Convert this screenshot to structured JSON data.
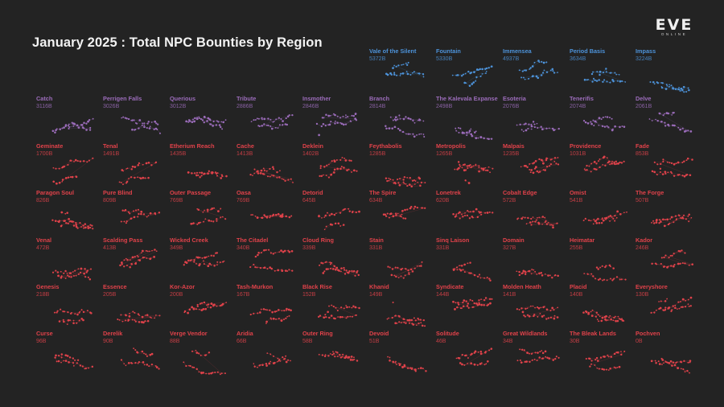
{
  "title": "January 2025 : Total NPC Bounties by Region",
  "logo": {
    "main": "EVE",
    "sub": "ONLINE"
  },
  "colors": {
    "high": "#4d93da",
    "mid": "#9b6cba",
    "low": "#e0424a"
  },
  "chart_data": {
    "type": "small-multiples",
    "metric": "Total NPC Bounties",
    "unit": "B",
    "regions": [
      {
        "name": "Vale of the Silent",
        "value": 5372,
        "label": "5372B"
      },
      {
        "name": "Fountain",
        "value": 5330,
        "label": "5330B"
      },
      {
        "name": "Immensea",
        "value": 4937,
        "label": "4937B"
      },
      {
        "name": "Period Basis",
        "value": 3634,
        "label": "3634B"
      },
      {
        "name": "Impass",
        "value": 3224,
        "label": "3224B"
      },
      {
        "name": "Catch",
        "value": 3116,
        "label": "3116B"
      },
      {
        "name": "Perrigen Falls",
        "value": 3026,
        "label": "3026B"
      },
      {
        "name": "Querious",
        "value": 3012,
        "label": "3012B"
      },
      {
        "name": "Tribute",
        "value": 2886,
        "label": "2886B"
      },
      {
        "name": "Insmother",
        "value": 2846,
        "label": "2846B"
      },
      {
        "name": "Branch",
        "value": 2814,
        "label": "2814B"
      },
      {
        "name": "The Kalevala Expanse",
        "value": 2498,
        "label": "2498B"
      },
      {
        "name": "Esoteria",
        "value": 2076,
        "label": "2076B"
      },
      {
        "name": "Tenerifis",
        "value": 2074,
        "label": "2074B"
      },
      {
        "name": "Delve",
        "value": 2061,
        "label": "2061B"
      },
      {
        "name": "Geminate",
        "value": 1700,
        "label": "1700B"
      },
      {
        "name": "Tenal",
        "value": 1491,
        "label": "1491B"
      },
      {
        "name": "Etherium Reach",
        "value": 1435,
        "label": "1435B"
      },
      {
        "name": "Cache",
        "value": 1413,
        "label": "1413B"
      },
      {
        "name": "Deklein",
        "value": 1402,
        "label": "1402B"
      },
      {
        "name": "Feythabolis",
        "value": 1285,
        "label": "1285B"
      },
      {
        "name": "Metropolis",
        "value": 1265,
        "label": "1265B"
      },
      {
        "name": "Malpais",
        "value": 1235,
        "label": "1235B"
      },
      {
        "name": "Providence",
        "value": 1031,
        "label": "1031B"
      },
      {
        "name": "Fade",
        "value": 853,
        "label": "853B"
      },
      {
        "name": "Paragon Soul",
        "value": 826,
        "label": "826B"
      },
      {
        "name": "Pure Blind",
        "value": 809,
        "label": "809B"
      },
      {
        "name": "Outer Passage",
        "value": 769,
        "label": "769B"
      },
      {
        "name": "Oasa",
        "value": 769,
        "label": "769B"
      },
      {
        "name": "Detorid",
        "value": 645,
        "label": "645B"
      },
      {
        "name": "The Spire",
        "value": 634,
        "label": "634B"
      },
      {
        "name": "Lonetrek",
        "value": 620,
        "label": "620B"
      },
      {
        "name": "Cobalt Edge",
        "value": 572,
        "label": "572B"
      },
      {
        "name": "Omist",
        "value": 541,
        "label": "541B"
      },
      {
        "name": "The Forge",
        "value": 507,
        "label": "507B"
      },
      {
        "name": "Venal",
        "value": 472,
        "label": "472B"
      },
      {
        "name": "Scalding Pass",
        "value": 413,
        "label": "413B"
      },
      {
        "name": "Wicked Creek",
        "value": 349,
        "label": "349B"
      },
      {
        "name": "The Citadel",
        "value": 340,
        "label": "340B"
      },
      {
        "name": "Cloud Ring",
        "value": 339,
        "label": "339B"
      },
      {
        "name": "Stain",
        "value": 331,
        "label": "331B"
      },
      {
        "name": "Sinq Laison",
        "value": 331,
        "label": "331B"
      },
      {
        "name": "Domain",
        "value": 327,
        "label": "327B"
      },
      {
        "name": "Heimatar",
        "value": 255,
        "label": "255B"
      },
      {
        "name": "Kador",
        "value": 246,
        "label": "246B"
      },
      {
        "name": "Genesis",
        "value": 218,
        "label": "218B"
      },
      {
        "name": "Essence",
        "value": 205,
        "label": "205B"
      },
      {
        "name": "Kor-Azor",
        "value": 200,
        "label": "200B"
      },
      {
        "name": "Tash-Murkon",
        "value": 167,
        "label": "167B"
      },
      {
        "name": "Black Rise",
        "value": 152,
        "label": "152B"
      },
      {
        "name": "Khanid",
        "value": 149,
        "label": "149B"
      },
      {
        "name": "Syndicate",
        "value": 144,
        "label": "144B"
      },
      {
        "name": "Molden Heath",
        "value": 141,
        "label": "141B"
      },
      {
        "name": "Placid",
        "value": 140,
        "label": "140B"
      },
      {
        "name": "Everyshore",
        "value": 130,
        "label": "130B"
      },
      {
        "name": "Curse",
        "value": 96,
        "label": "96B"
      },
      {
        "name": "Derelik",
        "value": 90,
        "label": "90B"
      },
      {
        "name": "Verge Vendor",
        "value": 88,
        "label": "88B"
      },
      {
        "name": "Aridia",
        "value": 66,
        "label": "66B"
      },
      {
        "name": "Outer Ring",
        "value": 58,
        "label": "58B"
      },
      {
        "name": "Devoid",
        "value": 51,
        "label": "51B"
      },
      {
        "name": "Solitude",
        "value": 46,
        "label": "46B"
      },
      {
        "name": "Great Wildlands",
        "value": 34,
        "label": "34B"
      },
      {
        "name": "The Bleak Lands",
        "value": 30,
        "label": "30B"
      },
      {
        "name": "Pochven",
        "value": 0,
        "label": "0B"
      }
    ]
  }
}
